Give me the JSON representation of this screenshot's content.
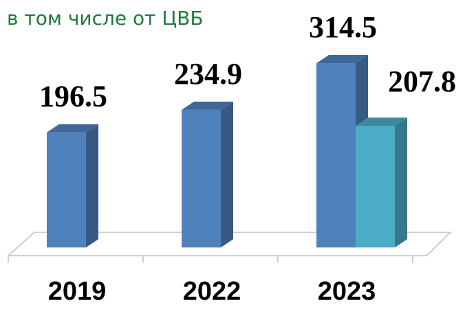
{
  "chart_data": {
    "type": "bar3d",
    "categories": [
      "2019",
      "2022",
      "2023"
    ],
    "series": [
      {
        "color": "#4f81bd",
        "values": [
          196.5,
          234.9,
          314.5
        ]
      },
      {
        "name": "в том числе от ЦВБ",
        "color": "#4bacc6",
        "values": [
          null,
          null,
          207.8
        ]
      }
    ]
  }
}
